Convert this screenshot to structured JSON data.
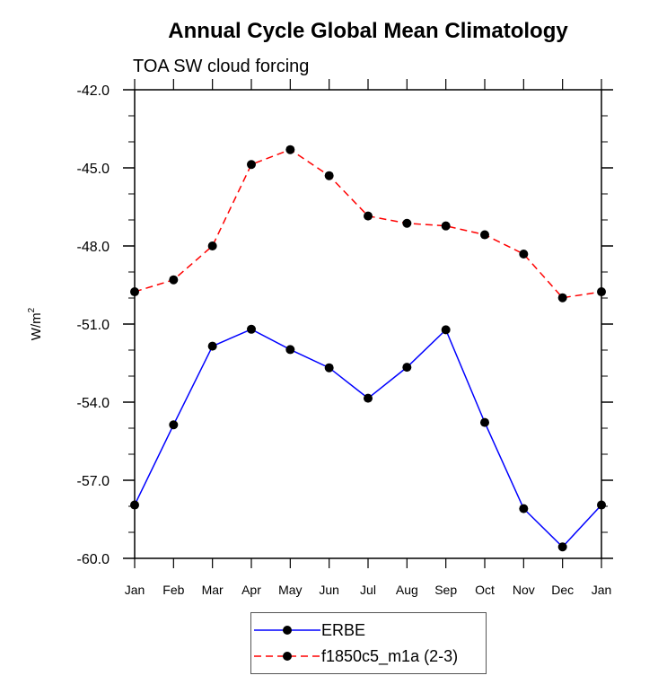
{
  "chart_data": {
    "type": "line",
    "title": "Annual Cycle Global Mean Climatology",
    "subtitle": "TOA SW cloud forcing",
    "xlabel": "",
    "ylabel": "W/m",
    "ylabel_superscript": "2",
    "categories": [
      "Jan",
      "Feb",
      "Mar",
      "Apr",
      "May",
      "Jun",
      "Jul",
      "Aug",
      "Sep",
      "Oct",
      "Nov",
      "Dec",
      "Jan"
    ],
    "ylim": [
      -60.0,
      -42.0
    ],
    "y_major_ticks": [
      -60.0,
      -57.0,
      -54.0,
      -51.0,
      -48.0,
      -45.0,
      -42.0
    ],
    "y_tick_labels": [
      "-60.0",
      "-57.0",
      "-54.0",
      "-51.0",
      "-48.0",
      "-45.0",
      "-42.0"
    ],
    "y_minor_step": 1.0,
    "grid": false,
    "legend_position": "bottom-center",
    "series": [
      {
        "name": "ERBE",
        "color": "#0000ff",
        "line_style": "solid",
        "marker": "filled-circle",
        "values": [
          -57.95,
          -54.87,
          -51.85,
          -51.2,
          -51.98,
          -52.68,
          -53.85,
          -52.66,
          -51.22,
          -54.78,
          -58.09,
          -59.56,
          -57.95
        ]
      },
      {
        "name": "f1850c5_m1a (2-3)",
        "color": "#ff0000",
        "line_style": "dashed",
        "marker": "filled-circle",
        "values": [
          -49.76,
          -49.3,
          -48.0,
          -44.87,
          -44.3,
          -45.3,
          -46.85,
          -47.13,
          -47.23,
          -47.57,
          -48.31,
          -49.99,
          -49.76
        ]
      }
    ]
  }
}
